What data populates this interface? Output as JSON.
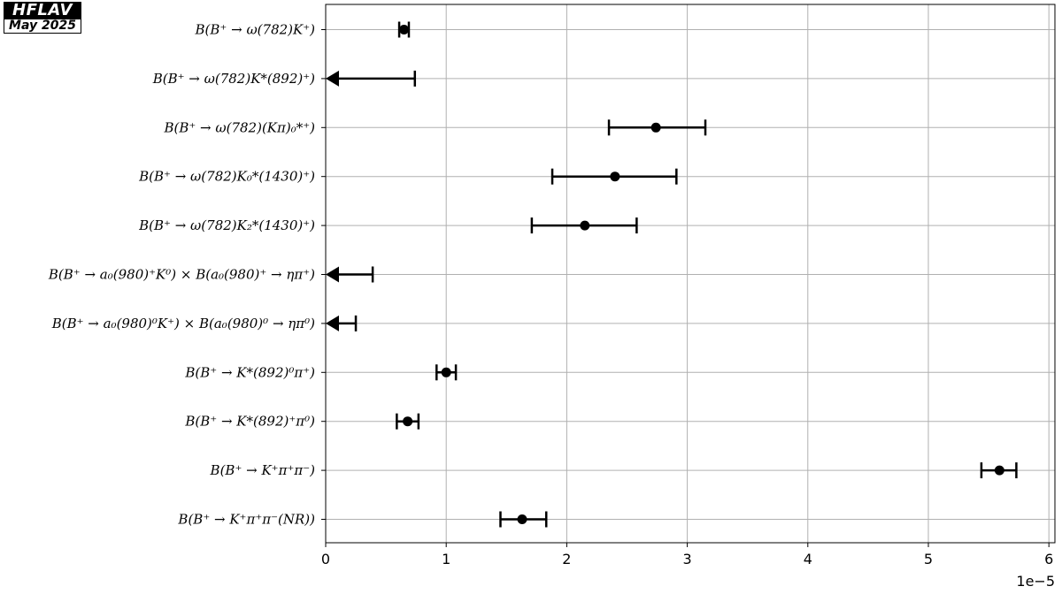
{
  "badge": {
    "title": "HFLAV",
    "date": "May 2025"
  },
  "chart_data": {
    "type": "scatter",
    "orientation": "horizontal",
    "xlim": [
      0,
      6.05
    ],
    "x_ticks": [
      "0",
      "1",
      "2",
      "3",
      "4",
      "5",
      "6"
    ],
    "x_offset_label": "1e−5",
    "grid": true,
    "series_color": "#000000",
    "rows": [
      {
        "label": "B(B⁺ → ω(782)K⁺)",
        "kind": "measurement",
        "value": 0.65,
        "lo": 0.61,
        "hi": 0.69
      },
      {
        "label": "B(B⁺ → ω(782)K*(892)⁺)",
        "kind": "upper_limit",
        "limit": 0.74
      },
      {
        "label": "B(B⁺ → ω(782)(Kπ)₀*⁺)",
        "kind": "measurement",
        "value": 2.74,
        "lo": 2.35,
        "hi": 3.15
      },
      {
        "label": "B(B⁺ → ω(782)K₀*(1430)⁺)",
        "kind": "measurement",
        "value": 2.4,
        "lo": 1.88,
        "hi": 2.91
      },
      {
        "label": "B(B⁺ → ω(782)K₂*(1430)⁺)",
        "kind": "measurement",
        "value": 2.15,
        "lo": 1.71,
        "hi": 2.58
      },
      {
        "label": "B(B⁺ → a₀(980)⁺K⁰) × B(a₀(980)⁺ → ηπ⁺)",
        "kind": "upper_limit",
        "limit": 0.39
      },
      {
        "label": "B(B⁺ → a₀(980)⁰K⁺) × B(a₀(980)⁰ → ηπ⁰)",
        "kind": "upper_limit",
        "limit": 0.25
      },
      {
        "label": "B(B⁺ → K*(892)⁰π⁺)",
        "kind": "measurement",
        "value": 1.0,
        "lo": 0.92,
        "hi": 1.08
      },
      {
        "label": "B(B⁺ → K*(892)⁺π⁰)",
        "kind": "measurement",
        "value": 0.68,
        "lo": 0.59,
        "hi": 0.77
      },
      {
        "label": "B(B⁺ → K⁺π⁺π⁻)",
        "kind": "measurement",
        "value": 5.59,
        "lo": 5.44,
        "hi": 5.73
      },
      {
        "label": "B(B⁺ → K⁺π⁺π⁻(NR))",
        "kind": "measurement",
        "value": 1.63,
        "lo": 1.45,
        "hi": 1.83
      }
    ]
  }
}
